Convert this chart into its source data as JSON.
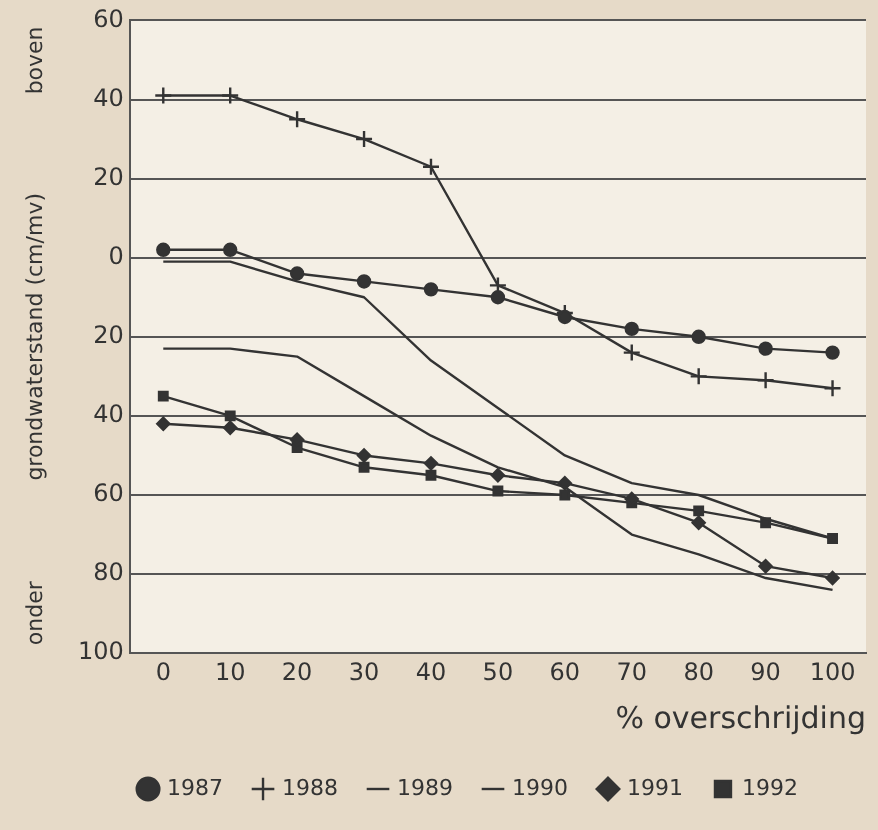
{
  "chart_data": {
    "type": "line",
    "ylabel": "grondwaterstand (cm/mv)",
    "xlabel": "% overschrijding",
    "annotations": [
      "boven",
      "onder"
    ],
    "x": [
      0,
      10,
      20,
      30,
      40,
      50,
      60,
      70,
      80,
      90,
      100
    ],
    "xlim": [
      -5,
      105
    ],
    "xticks": [
      0,
      10,
      20,
      30,
      40,
      50,
      60,
      70,
      80,
      90,
      100
    ],
    "ylim": [
      -100,
      60
    ],
    "yticks": [
      60,
      40,
      20,
      0,
      {
        "value": -20,
        "label": "20"
      },
      {
        "value": -40,
        "label": "40"
      },
      {
        "value": -60,
        "label": "60"
      },
      {
        "value": -80,
        "label": "80"
      },
      {
        "value": -100,
        "label": "100"
      }
    ],
    "grid": "y",
    "legend": "bottom",
    "series": [
      {
        "name": "1987",
        "color": "#333333",
        "marker": "circle",
        "values": [
          2,
          2,
          -4,
          -6,
          -8,
          -10,
          -15,
          -18,
          -20,
          -23,
          -24
        ]
      },
      {
        "name": "1988",
        "color": "#333333",
        "marker": "cross",
        "values": [
          41,
          41,
          35,
          30,
          23,
          -7,
          -14,
          -24,
          -30,
          -31,
          -33
        ]
      },
      {
        "name": "1989",
        "color": "#333333",
        "marker": "none",
        "values": [
          -1,
          -1,
          -6,
          -10,
          -26,
          -38,
          -50,
          -57,
          -60,
          -66,
          -71
        ]
      },
      {
        "name": "1990",
        "color": "#333333",
        "marker": "none",
        "values": [
          -23,
          -23,
          -25,
          -35,
          -45,
          -53,
          -58,
          -70,
          -75,
          -81,
          -84
        ]
      },
      {
        "name": "1991",
        "color": "#333333",
        "marker": "diamond",
        "values": [
          -42,
          -43,
          -46,
          -50,
          -52,
          -55,
          -57,
          -61,
          -67,
          -78,
          -81
        ]
      },
      {
        "name": "1992",
        "color": "#333333",
        "marker": "square",
        "values": [
          -35,
          -40,
          -48,
          -53,
          -55,
          -59,
          -60,
          -62,
          -64,
          -67,
          -71
        ]
      }
    ]
  }
}
